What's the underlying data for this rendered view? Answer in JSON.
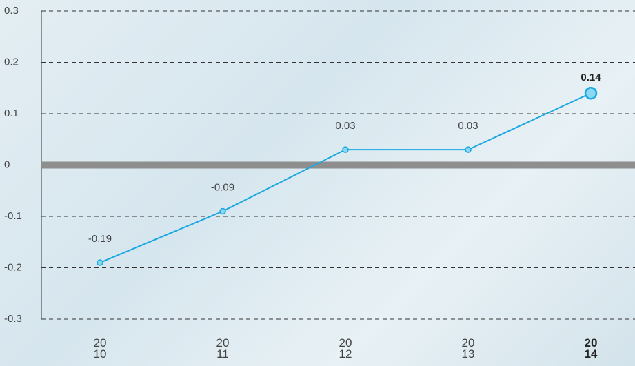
{
  "chart_data": {
    "type": "line",
    "categories": [
      "2010",
      "2011",
      "2012",
      "2013",
      "2014"
    ],
    "series": [
      {
        "name": "value",
        "color": "#1ba8e2",
        "values": [
          -0.19,
          -0.09,
          0.03,
          0.03,
          0.14
        ]
      }
    ],
    "ylim": [
      -0.3,
      0.3
    ],
    "yticks": [
      -0.3,
      -0.2,
      -0.1,
      0,
      0.1,
      0.2,
      0.3
    ],
    "grid": true
  }
}
